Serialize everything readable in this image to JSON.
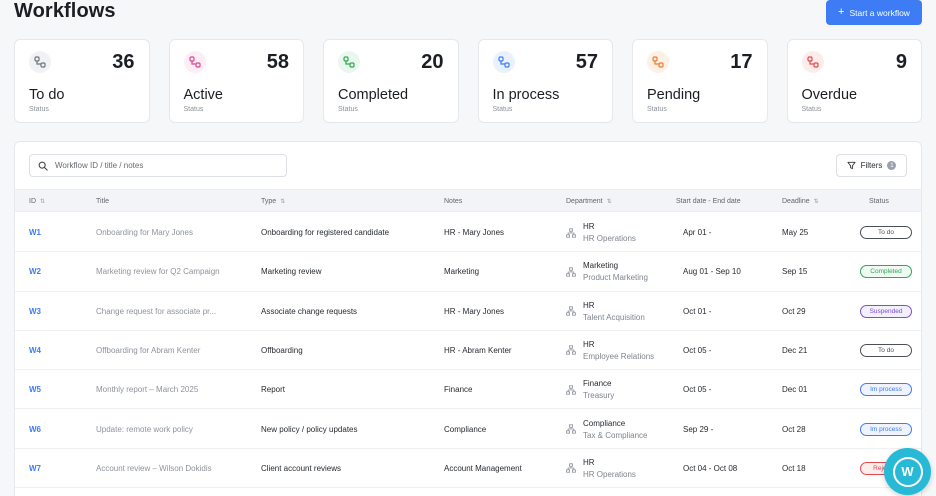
{
  "header": {
    "title": "Workflows",
    "start_button": "Start a workflow",
    "start_icon": "+"
  },
  "stats": [
    {
      "label": "To do",
      "count": "36",
      "sub": "Status",
      "color": "#6b7280",
      "bg": "#f1f2f4"
    },
    {
      "label": "Active",
      "count": "58",
      "sub": "Status",
      "color": "#e0448f",
      "bg": "#fdeef5"
    },
    {
      "label": "Completed",
      "count": "20",
      "sub": "Status",
      "color": "#2fa84f",
      "bg": "#e9f7ee"
    },
    {
      "label": "In process",
      "count": "57",
      "sub": "Status",
      "color": "#3d7cf4",
      "bg": "#eaf1fe"
    },
    {
      "label": "Pending",
      "count": "17",
      "sub": "Status",
      "color": "#ee7a2e",
      "bg": "#fdf0e6"
    },
    {
      "label": "Overdue",
      "count": "9",
      "sub": "Status",
      "color": "#e5484d",
      "bg": "#fdecec"
    }
  ],
  "search": {
    "placeholder": "Workflow ID / title / notes"
  },
  "filters": {
    "label": "Filters",
    "count": "1"
  },
  "columns": {
    "id": "ID",
    "title": "Title",
    "type": "Type",
    "notes": "Notes",
    "department": "Department",
    "dates": "Start date - End date",
    "deadline": "Deadline",
    "status": "Status"
  },
  "rows": [
    {
      "id": "W1",
      "title": "Onboarding for Mary Jones",
      "type": "Onboarding for registered candidate",
      "notes": "HR - Mary Jones",
      "dept": "HR",
      "dept_sub": "HR Operations",
      "dates": "Apr 01 -",
      "deadline": "May 25",
      "status": "To do",
      "status_color": "#4b5058",
      "status_bg": "#ffffff"
    },
    {
      "id": "W2",
      "title": "Marketing review for Q2 Campaign",
      "type": "Marketing review",
      "notes": "Marketing",
      "dept": "Marketing",
      "dept_sub": "Product Marketing",
      "dates": "Aug 01 - Sep 10",
      "deadline": "Sep 15",
      "status": "Completed",
      "status_color": "#2fa84f",
      "status_bg": "#eefaf2"
    },
    {
      "id": "W3",
      "title": "Change request for associate pr...",
      "type": "Associate change requests",
      "notes": "HR - Mary Jones",
      "dept": "HR",
      "dept_sub": "Talent Acquisition",
      "dates": "Oct 01 -",
      "deadline": "Oct 29",
      "status": "Suspended",
      "status_color": "#7b4fd6",
      "status_bg": "#f4effd"
    },
    {
      "id": "W4",
      "title": "Offboarding for Abram Kenter",
      "type": "Offboarding",
      "notes": "HR - Abram Kenter",
      "dept": "HR",
      "dept_sub": "Employee Relations",
      "dates": "Oct 05 -",
      "deadline": "Dec 21",
      "status": "To do",
      "status_color": "#4b5058",
      "status_bg": "#ffffff"
    },
    {
      "id": "W5",
      "title": "Monthly report – March 2025",
      "type": "Report",
      "notes": "Finance",
      "dept": "Finance",
      "dept_sub": "Treasury",
      "dates": "Oct 05 -",
      "deadline": "Dec 01",
      "status": "Im process",
      "status_color": "#3d7cf4",
      "status_bg": "#eef3fe"
    },
    {
      "id": "W6",
      "title": "Update: remote work policy",
      "type": "New policy / policy updates",
      "notes": "Compliance",
      "dept": "Compliance",
      "dept_sub": "Tax & Compliance",
      "dates": "Sep 29 -",
      "deadline": "Oct 28",
      "status": "Im process",
      "status_color": "#3d7cf4",
      "status_bg": "#eef3fe"
    },
    {
      "id": "W7",
      "title": "Account review – Wilson Dokidis",
      "type": "Client account reviews",
      "notes": "Account Management",
      "dept": "HR",
      "dept_sub": "HR Operations",
      "dates": "Oct 04 - Oct 08",
      "deadline": "Oct 18",
      "status": "Rejected",
      "status_color": "#e5484d",
      "status_bg": "#fdeeee"
    }
  ],
  "icons": {
    "stat": "workflow-icon",
    "search": "search-icon",
    "filter": "filter-icon",
    "department": "org-chart-icon",
    "fab": "assistant-icon"
  },
  "fab": {
    "letter": "W"
  }
}
